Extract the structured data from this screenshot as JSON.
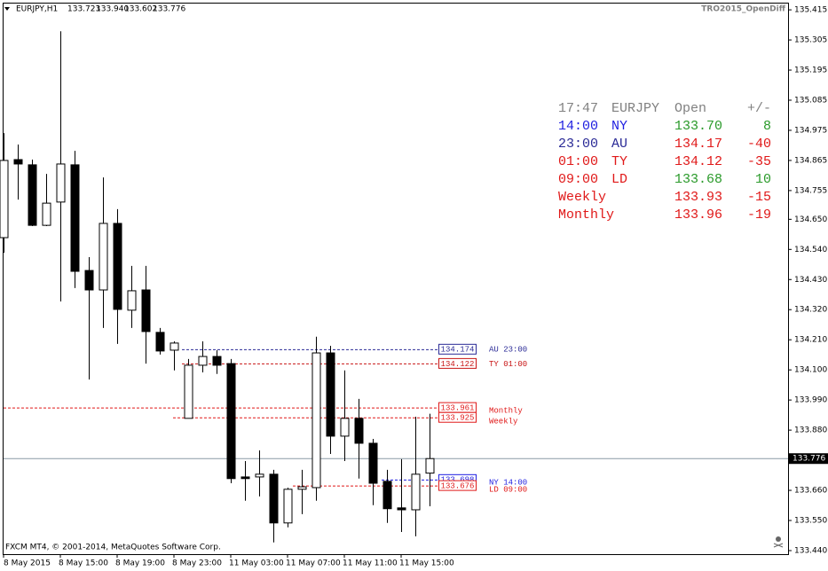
{
  "chart_data": {
    "type": "candlestick",
    "title": "EURJPY,H1",
    "header_prices": [
      "133.723",
      "133.940",
      "133.602",
      "133.776"
    ],
    "indicator": "TRO2015_OpenDiff",
    "footer": "FXCM MT4, © 2001-2014, MetaQuotes Software Corp.",
    "categories": [
      "8 May 2015",
      null,
      null,
      null,
      "8 May 15:00",
      null,
      null,
      null,
      "8 May 19:00",
      null,
      null,
      null,
      "8 May 23:00",
      null,
      null,
      null,
      "11 May 03:00",
      null,
      null,
      null,
      "11 May 07:00",
      null,
      null,
      null,
      "11 May 11:00",
      null,
      null,
      null,
      "11 May 15:00",
      null,
      null
    ],
    "open": [
      134.583,
      134.868,
      134.849,
      134.628,
      134.713,
      134.849,
      134.463,
      134.392,
      134.635,
      134.318,
      134.392,
      134.237,
      134.172,
      133.923,
      134.117,
      134.149,
      134.123,
      133.709,
      133.709,
      133.719,
      133.541,
      133.664,
      133.67,
      134.162,
      133.858,
      133.923,
      133.832,
      133.693,
      133.596,
      133.589,
      133.723
    ],
    "high": [
      134.965,
      134.923,
      134.868,
      134.816,
      135.337,
      134.9,
      134.512,
      134.803,
      134.687,
      134.48,
      134.48,
      134.253,
      134.204,
      134.14,
      134.204,
      134.172,
      134.14,
      133.767,
      133.806,
      133.735,
      133.67,
      133.735,
      134.221,
      134.188,
      134.098,
      133.994,
      133.848,
      133.735,
      133.774,
      133.929,
      133.94
    ],
    "low": [
      134.528,
      134.722,
      134.625,
      134.625,
      134.35,
      134.399,
      134.065,
      134.253,
      134.195,
      134.253,
      134.123,
      134.156,
      134.098,
      133.923,
      134.091,
      134.085,
      133.686,
      133.622,
      133.638,
      133.47,
      133.525,
      133.573,
      133.622,
      133.793,
      133.767,
      133.703,
      133.606,
      133.541,
      133.508,
      133.492,
      133.602
    ],
    "close": [
      134.865,
      134.852,
      134.628,
      134.709,
      134.852,
      134.46,
      134.392,
      134.635,
      134.321,
      134.389,
      134.24,
      134.169,
      134.198,
      134.117,
      134.149,
      134.117,
      133.703,
      133.703,
      133.719,
      133.541,
      133.664,
      133.673,
      134.162,
      133.858,
      133.923,
      133.832,
      133.686,
      133.593,
      133.589,
      133.719,
      133.776
    ],
    "ylim": [
      133.427,
      135.438
    ],
    "yticks": [
      135.415,
      {
        "value": 135.305,
        "label": "135.305"
      },
      135.195,
      135.085,
      134.975,
      134.865,
      134.755,
      {
        "value": 134.65,
        "label": "134.650"
      },
      {
        "value": 134.54,
        "label": "134.540"
      },
      {
        "value": 134.43,
        "label": "134.430"
      },
      {
        "value": 134.32,
        "label": "134.320"
      },
      {
        "value": 134.21,
        "label": "134.210"
      },
      {
        "value": 134.1,
        "label": "134.100"
      },
      {
        "value": 133.99,
        "label": "133.990"
      },
      {
        "value": 133.88,
        "label": "133.880"
      },
      {
        "value": 133.66,
        "label": "133.660"
      },
      {
        "value": 133.55,
        "label": "133.550"
      },
      {
        "value": 133.44,
        "label": "133.440"
      }
    ],
    "current_price": 133.776,
    "levels": [
      {
        "name": "AU 23:00",
        "value": 134.174,
        "color": "#2a2a96"
      },
      {
        "name": "TY 01:00",
        "value": 134.122,
        "color": "#c81414"
      },
      {
        "name": "Monthly",
        "value": 133.961,
        "color": "#e01818"
      },
      {
        "name": "Weekly",
        "value": 133.925,
        "color": "#e01818"
      },
      {
        "name": "NY 14:00",
        "value": 133.698,
        "color": "#1e1ee0"
      },
      {
        "name": "LD 09:00",
        "value": 133.676,
        "color": "#e01818"
      }
    ],
    "panel": {
      "header": [
        "17:47",
        "EURJPY",
        "Open",
        "+/-"
      ],
      "header_color": "#808080",
      "rows": [
        {
          "cells": [
            "14:00",
            "NY",
            "133.70",
            "8"
          ],
          "colors": [
            "#1e1ee0",
            "#1e1ee0",
            "#2a9a2a",
            "#2a9a2a"
          ]
        },
        {
          "cells": [
            "23:00",
            "AU",
            "134.17",
            "-40"
          ],
          "colors": [
            "#2a2a96",
            "#2a2a96",
            "#e01818",
            "#e01818"
          ]
        },
        {
          "cells": [
            "01:00",
            "TY",
            "134.12",
            "-35"
          ],
          "colors": [
            "#e01818",
            "#e01818",
            "#e01818",
            "#e01818"
          ]
        },
        {
          "cells": [
            "09:00",
            "LD",
            "133.68",
            "10"
          ],
          "colors": [
            "#e01818",
            "#e01818",
            "#2a9a2a",
            "#2a9a2a"
          ]
        },
        {
          "cells": [
            "Weekly",
            "133.93",
            "-15"
          ],
          "colors": [
            "#e01818",
            "#e01818",
            "#e01818"
          ]
        },
        {
          "cells": [
            "Monthly",
            "133.96",
            "-19"
          ],
          "colors": [
            "#e01818",
            "#e01818",
            "#e01818"
          ]
        }
      ]
    }
  }
}
